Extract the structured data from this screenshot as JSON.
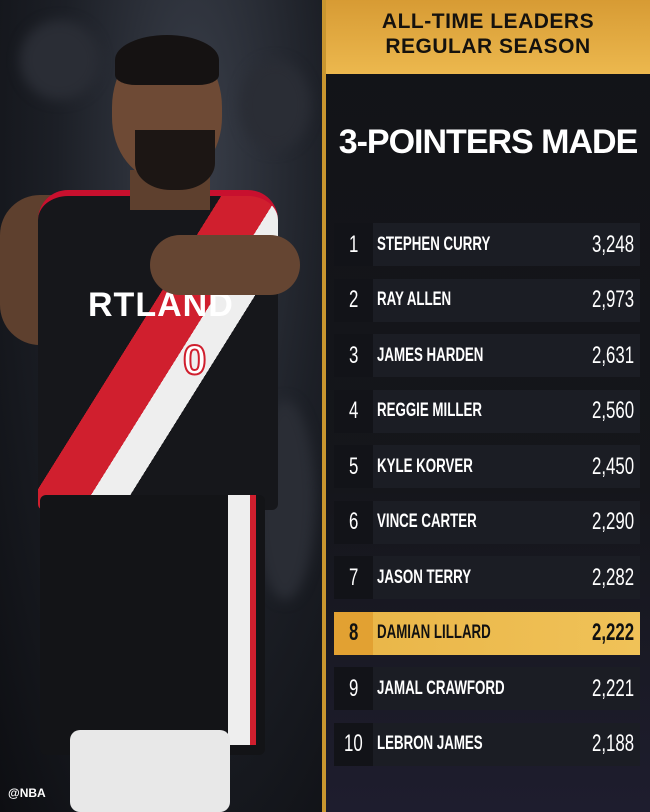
{
  "header": {
    "line1": "ALL-TIME LEADERS",
    "line2": "REGULAR SEASON"
  },
  "title": "3-POINTERS MADE",
  "highlight_color": "#ecb84e",
  "leaders": [
    {
      "rank": "1",
      "name": "STEPHEN CURRY",
      "value": "3,248"
    },
    {
      "rank": "2",
      "name": "RAY ALLEN",
      "value": "2,973"
    },
    {
      "rank": "3",
      "name": "JAMES HARDEN",
      "value": "2,631"
    },
    {
      "rank": "4",
      "name": "REGGIE MILLER",
      "value": "2,560"
    },
    {
      "rank": "5",
      "name": "KYLE KORVER",
      "value": "2,450"
    },
    {
      "rank": "6",
      "name": "VINCE CARTER",
      "value": "2,290"
    },
    {
      "rank": "7",
      "name": "JASON TERRY",
      "value": "2,282"
    },
    {
      "rank": "8",
      "name": "DAMIAN LILLARD",
      "value": "2,222",
      "highlighted": true
    },
    {
      "rank": "9",
      "name": "JAMAL CRAWFORD",
      "value": "2,221"
    },
    {
      "rank": "10",
      "name": "LEBRON JAMES",
      "value": "2,188"
    }
  ],
  "photo": {
    "jersey_text": "RTLAND",
    "jersey_number": "0"
  },
  "watermark": "@NBA"
}
